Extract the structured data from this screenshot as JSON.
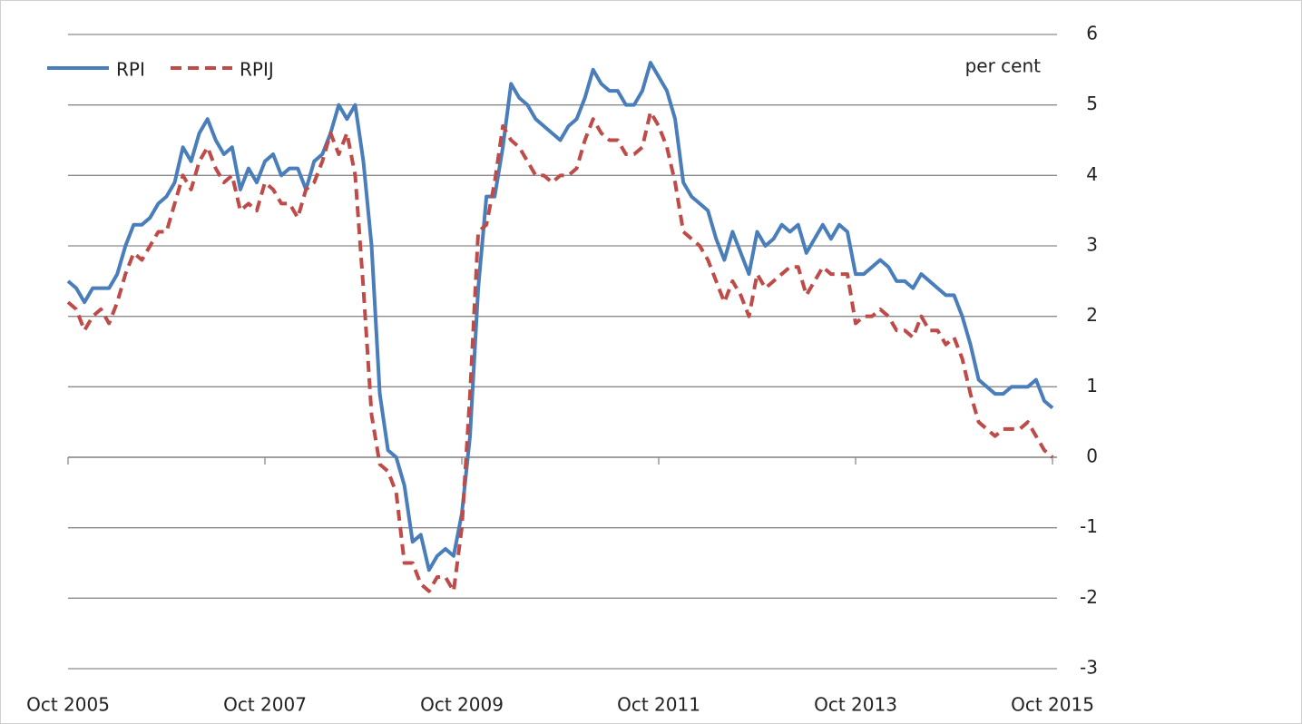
{
  "chart_data": {
    "type": "line",
    "annotation": "per cent",
    "categories": [
      "Oct 2005",
      null,
      null,
      null,
      null,
      null,
      null,
      null,
      null,
      null,
      null,
      null,
      null,
      null,
      null,
      null,
      null,
      null,
      null,
      null,
      null,
      null,
      null,
      null,
      "Oct 2007",
      null,
      null,
      null,
      null,
      null,
      null,
      null,
      null,
      null,
      null,
      null,
      null,
      null,
      null,
      null,
      null,
      null,
      null,
      null,
      null,
      null,
      null,
      null,
      "Oct 2009",
      null,
      null,
      null,
      null,
      null,
      null,
      null,
      null,
      null,
      null,
      null,
      null,
      null,
      null,
      null,
      null,
      null,
      null,
      null,
      null,
      null,
      null,
      null,
      "Oct 2011",
      null,
      null,
      null,
      null,
      null,
      null,
      null,
      null,
      null,
      null,
      null,
      null,
      null,
      null,
      null,
      null,
      null,
      null,
      null,
      null,
      null,
      null,
      null,
      "Oct 2013",
      null,
      null,
      null,
      null,
      null,
      null,
      null,
      null,
      null,
      null,
      null,
      null,
      null,
      null,
      null,
      null,
      null,
      null,
      null,
      null,
      null,
      null,
      null,
      "Oct 2015"
    ],
    "series": [
      {
        "name": "RPI",
        "color": "#4a7ebb",
        "dash": false,
        "values": [
          2.5,
          2.4,
          2.2,
          2.4,
          2.4,
          2.4,
          2.6,
          3.0,
          3.3,
          3.3,
          3.4,
          3.6,
          3.7,
          3.9,
          4.4,
          4.2,
          4.6,
          4.8,
          4.5,
          4.3,
          4.4,
          3.8,
          4.1,
          3.9,
          4.2,
          4.3,
          4.0,
          4.1,
          4.1,
          3.8,
          4.2,
          4.3,
          4.6,
          5.0,
          4.8,
          5.0,
          4.2,
          3.0,
          0.9,
          0.1,
          0.0,
          -0.4,
          -1.2,
          -1.1,
          -1.6,
          -1.4,
          -1.3,
          -1.4,
          -0.8,
          0.3,
          2.4,
          3.7,
          3.7,
          4.4,
          5.3,
          5.1,
          5.0,
          4.8,
          4.7,
          4.6,
          4.5,
          4.7,
          4.8,
          5.1,
          5.5,
          5.3,
          5.2,
          5.2,
          5.0,
          5.0,
          5.2,
          5.6,
          5.4,
          5.2,
          4.8,
          3.9,
          3.7,
          3.6,
          3.5,
          3.1,
          2.8,
          3.2,
          2.9,
          2.6,
          3.2,
          3.0,
          3.1,
          3.3,
          3.2,
          3.3,
          2.9,
          3.1,
          3.3,
          3.1,
          3.3,
          3.2,
          2.6,
          2.6,
          2.7,
          2.8,
          2.7,
          2.5,
          2.5,
          2.4,
          2.6,
          2.5,
          2.4,
          2.3,
          2.3,
          2.0,
          1.6,
          1.1,
          1.0,
          0.9,
          0.9,
          1.0,
          1.0,
          1.0,
          1.1,
          0.8,
          0.7
        ]
      },
      {
        "name": "RPIJ",
        "color": "#be4b48",
        "dash": true,
        "values": [
          2.2,
          2.1,
          1.8,
          2.0,
          2.1,
          1.9,
          2.2,
          2.6,
          2.9,
          2.8,
          3.0,
          3.2,
          3.2,
          3.6,
          4.0,
          3.8,
          4.2,
          4.4,
          4.1,
          3.9,
          4.0,
          3.5,
          3.6,
          3.5,
          3.9,
          3.8,
          3.6,
          3.6,
          3.4,
          3.8,
          3.9,
          4.2,
          4.6,
          4.3,
          4.6,
          4.0,
          2.4,
          0.6,
          -0.1,
          -0.2,
          -0.5,
          -1.5,
          -1.5,
          -1.8,
          -1.9,
          -1.7,
          -1.7,
          -1.9,
          -1.0,
          0.9,
          3.2,
          3.3,
          3.9,
          4.7,
          4.5,
          4.4,
          4.2,
          4.0,
          4.0,
          3.9,
          4.0,
          4.0,
          4.1,
          4.5,
          4.8,
          4.6,
          4.5,
          4.5,
          4.3,
          4.3,
          4.4,
          4.9,
          4.7,
          4.4,
          3.9,
          3.2,
          3.1,
          3.0,
          2.8,
          2.5,
          2.2,
          2.5,
          2.3,
          2.0,
          2.6,
          2.4,
          2.5,
          2.6,
          2.7,
          2.7,
          2.3,
          2.5,
          2.7,
          2.6,
          2.6,
          2.6,
          1.9,
          2.0,
          2.0,
          2.1,
          2.0,
          1.8,
          1.8,
          1.7,
          2.0,
          1.8,
          1.8,
          1.6,
          1.7,
          1.4,
          0.9,
          0.5,
          0.4,
          0.3,
          0.4,
          0.4,
          0.4,
          0.5,
          0.3,
          0.1,
          0.0
        ]
      }
    ],
    "ylim": [
      -3,
      6
    ],
    "yticks": [
      -3,
      -2,
      -1,
      0,
      1,
      2,
      3,
      4,
      5,
      6
    ],
    "grid": true,
    "legend": "top-left"
  }
}
